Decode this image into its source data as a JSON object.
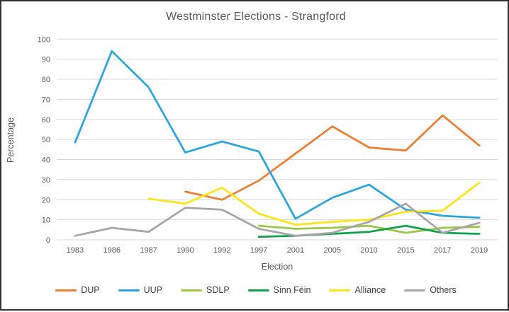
{
  "chart_data": {
    "type": "line",
    "title": "Westminster Elections - Strangford",
    "xlabel": "Election",
    "ylabel": "Percentage",
    "ylim": [
      0,
      100
    ],
    "yticks": [
      0,
      10,
      20,
      30,
      40,
      50,
      60,
      70,
      80,
      90,
      100
    ],
    "grid": "horizontal",
    "legend_position": "bottom",
    "categories": [
      "1983",
      "1986",
      "1987",
      "1990",
      "1992",
      "1997",
      "2001",
      "2005",
      "2010",
      "2015",
      "2017",
      "2019"
    ],
    "series": [
      {
        "name": "DUP",
        "color": "#ED7D31",
        "values": [
          null,
          null,
          null,
          24,
          20,
          29.5,
          43,
          56.5,
          46,
          44.5,
          62,
          47
        ]
      },
      {
        "name": "UUP",
        "color": "#2AA5DE",
        "values": [
          48.5,
          94,
          76,
          43.5,
          49,
          44,
          10.5,
          21,
          27.5,
          15,
          12,
          11
        ]
      },
      {
        "name": "SDLP",
        "color": "#99C746",
        "values": [
          null,
          null,
          null,
          null,
          null,
          7,
          5.5,
          6,
          7,
          3.5,
          6,
          6.5
        ]
      },
      {
        "name": "Sinn Féin",
        "color": "#12A14B",
        "values": [
          null,
          null,
          null,
          null,
          null,
          1.5,
          2,
          3,
          4,
          7,
          3.5,
          3
        ]
      },
      {
        "name": "Alliance",
        "color": "#FFE415",
        "values": [
          null,
          null,
          20.5,
          18,
          26,
          13,
          7.5,
          9,
          10,
          14,
          14.5,
          28.5
        ]
      },
      {
        "name": "Others",
        "color": "#A6A6A6",
        "values": [
          2,
          6,
          4,
          16,
          15,
          5.5,
          2,
          3.5,
          9,
          18,
          3.5,
          8.5
        ]
      }
    ]
  }
}
